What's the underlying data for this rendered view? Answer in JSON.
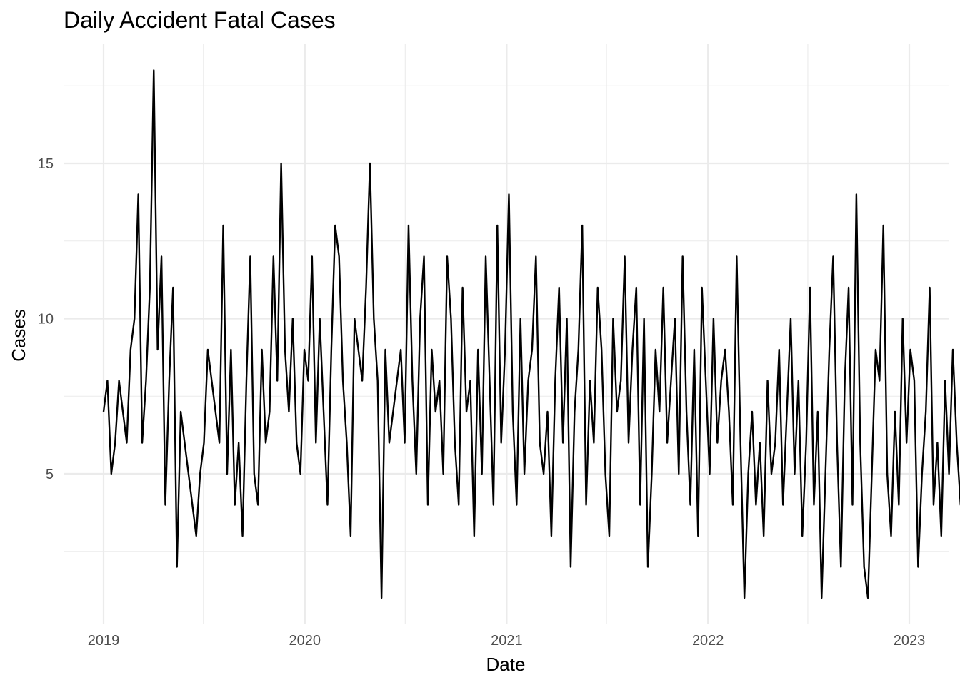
{
  "chart_data": {
    "type": "line",
    "title": "Daily Accident Fatal Cases",
    "xlabel": "Date",
    "ylabel": "Cases",
    "x_range": [
      "2019-01-01",
      "2022-12-31"
    ],
    "x_ticks": [
      "2019",
      "2020",
      "2021",
      "2022",
      "2023"
    ],
    "y_ticks": [
      "5",
      "10",
      "15"
    ],
    "ylim": [
      0.5,
      18.5
    ],
    "grid": true,
    "legend": "none",
    "series_color": "#000000",
    "series": [
      {
        "x_start": "2019-01-01",
        "x_step": "7 days",
        "values": [
          7,
          8,
          5,
          6,
          8,
          7,
          6,
          9,
          10,
          14,
          6,
          8,
          11,
          18,
          9,
          12,
          4,
          8,
          11,
          2,
          7,
          6,
          5,
          4,
          3,
          5,
          6,
          9,
          8,
          7,
          6,
          13,
          5,
          9,
          4,
          6,
          3,
          8,
          12,
          5,
          4,
          9,
          6,
          7,
          12,
          8,
          15,
          9,
          7,
          10,
          6,
          5,
          9,
          8,
          12,
          6,
          10,
          7,
          4,
          9,
          13,
          12,
          8,
          6,
          3,
          10,
          9,
          8,
          11,
          15,
          10,
          8,
          1,
          9,
          6,
          7,
          8,
          9,
          6,
          13,
          8,
          5,
          10,
          12,
          4,
          9,
          7,
          8,
          5,
          12,
          10,
          6,
          4,
          11,
          7,
          8,
          3,
          9,
          5,
          12,
          8,
          4,
          13,
          6,
          9,
          14,
          7,
          4,
          10,
          5,
          8,
          9,
          12,
          6,
          5,
          7,
          3,
          8,
          11,
          6,
          10,
          2,
          7,
          9,
          13,
          4,
          8,
          6,
          11,
          9,
          5,
          3,
          10,
          7,
          8,
          12,
          6,
          9,
          11,
          4,
          10,
          2,
          5,
          9,
          7,
          11,
          6,
          8,
          10,
          5,
          12,
          7,
          4,
          9,
          3,
          11,
          8,
          5,
          10,
          6,
          8,
          9,
          7,
          4,
          12,
          6,
          1,
          5,
          7,
          4,
          6,
          3,
          8,
          5,
          6,
          9,
          4,
          7,
          10,
          5,
          8,
          3,
          6,
          11,
          4,
          7,
          1,
          5,
          9,
          12,
          6,
          2,
          8,
          11,
          4,
          14,
          6,
          2,
          1,
          5,
          9,
          8,
          13,
          5,
          3,
          7,
          4,
          10,
          6,
          9,
          8,
          2,
          5,
          7,
          11,
          4,
          6,
          3,
          8,
          5,
          9,
          6,
          4,
          7,
          11,
          3,
          5,
          1,
          9,
          12,
          6,
          4,
          8,
          10,
          3,
          5,
          13,
          6,
          7,
          9,
          4,
          8,
          2,
          6,
          11,
          5,
          3,
          7,
          9,
          4,
          10,
          6,
          8,
          2,
          5,
          12,
          7,
          1,
          6,
          4,
          9,
          3,
          8,
          5,
          7,
          11,
          2,
          6,
          9,
          4,
          8,
          10,
          6,
          7,
          12,
          5,
          15,
          9,
          3,
          6,
          11,
          8,
          5,
          10,
          7,
          2,
          9,
          4,
          8,
          6,
          13,
          5,
          7,
          11,
          3,
          9,
          6,
          4,
          8,
          10,
          5,
          7,
          12,
          6,
          9,
          4,
          11,
          8,
          5,
          7,
          3,
          9,
          12,
          6,
          8,
          4,
          10,
          7,
          5,
          9,
          11,
          6,
          3,
          8,
          2,
          7,
          9,
          4,
          10,
          8,
          6,
          1,
          5,
          9,
          3,
          7,
          11,
          4,
          8,
          2,
          6,
          10,
          5,
          9,
          3,
          7,
          4,
          11,
          8,
          1,
          6,
          9,
          5,
          10,
          4,
          8,
          6,
          14,
          7,
          5,
          3,
          9,
          11,
          4,
          7,
          6,
          10,
          5,
          8,
          3,
          12,
          6,
          7,
          9,
          4,
          11,
          6,
          8,
          5,
          10,
          3,
          7,
          9,
          5,
          8,
          1,
          6,
          11,
          4,
          9,
          7,
          3,
          8,
          10,
          6,
          5,
          13,
          7,
          4,
          9,
          6,
          11,
          8,
          5,
          10,
          3,
          7,
          14,
          6,
          9,
          4,
          8,
          5,
          12,
          7,
          2,
          9,
          6,
          10,
          4,
          8,
          3,
          14,
          7,
          5,
          9,
          11,
          6,
          4,
          8,
          10,
          5,
          7,
          12,
          6,
          9,
          3,
          11,
          8,
          4,
          10,
          6,
          15,
          9,
          7,
          12,
          5,
          14,
          8,
          6,
          11,
          17,
          9,
          10,
          4,
          13,
          8,
          2,
          6,
          3,
          4,
          1,
          5,
          2,
          6,
          4,
          9,
          3,
          1,
          5,
          7,
          2,
          4,
          1,
          3,
          6,
          2,
          5,
          4,
          3,
          7,
          1,
          5,
          4,
          2,
          6,
          3,
          7,
          5,
          1,
          4,
          3,
          8,
          2,
          6,
          4,
          5,
          11,
          3,
          6,
          2,
          7,
          4,
          5,
          3,
          9,
          1,
          4,
          6,
          2,
          7,
          3,
          5,
          4,
          10,
          2,
          6,
          3,
          4,
          1,
          5,
          7,
          2,
          3,
          6,
          4,
          1,
          5,
          3,
          8,
          2,
          6,
          4,
          1,
          7,
          3,
          5,
          11,
          2,
          4,
          6,
          9,
          3,
          2,
          5,
          10,
          4,
          3,
          8,
          1,
          6,
          2,
          9,
          5,
          3,
          1,
          6,
          4,
          2,
          5,
          9,
          1,
          3,
          7,
          2,
          4,
          6,
          1,
          5,
          4,
          3,
          2,
          4,
          1,
          5,
          3,
          4,
          1
        ]
      }
    ]
  }
}
